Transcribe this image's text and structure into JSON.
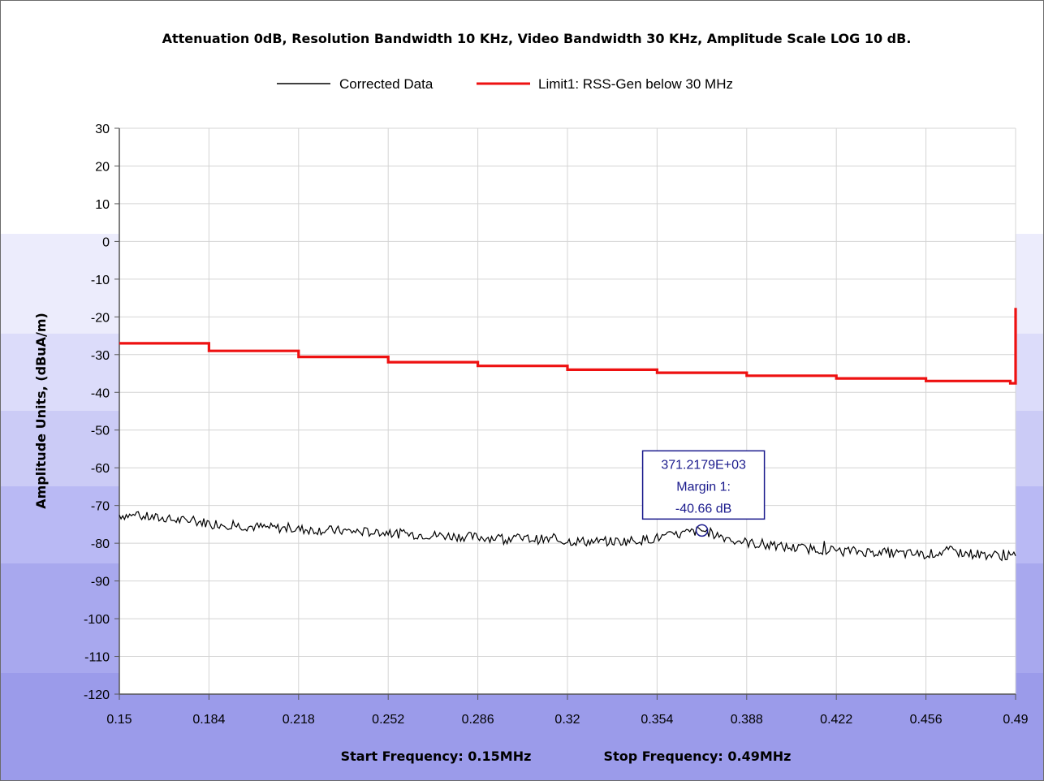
{
  "chart_data": {
    "type": "line",
    "title": "Attenuation 0dB, Resolution Bandwidth 10 KHz, Video Bandwidth 30 KHz, Amplitude Scale LOG 10 dB.",
    "ylabel": "Amplitude Units, (dBuA/m)",
    "footer": {
      "start": "Start Frequency: 0.15MHz",
      "stop": "Stop Frequency: 0.49MHz"
    },
    "xlim": [
      0.15,
      0.49
    ],
    "ylim": [
      -120,
      30
    ],
    "x_ticks": [
      "0.15",
      "0.184",
      "0.218",
      "0.252",
      "0.286",
      "0.32",
      "0.354",
      "0.388",
      "0.422",
      "0.456",
      "0.49"
    ],
    "y_ticks": [
      "30",
      "20",
      "10",
      "0",
      "-10",
      "-20",
      "-30",
      "-40",
      "-50",
      "-60",
      "-70",
      "-80",
      "-90",
      "-100",
      "-110",
      "-120"
    ],
    "grid": true,
    "legend_position": "top",
    "series": [
      {
        "name": "Corrected Data",
        "color": "#000000",
        "x": [
          0.15,
          0.16,
          0.17,
          0.18,
          0.184,
          0.19,
          0.2,
          0.21,
          0.218,
          0.23,
          0.24,
          0.252,
          0.26,
          0.27,
          0.28,
          0.286,
          0.3,
          0.31,
          0.32,
          0.33,
          0.34,
          0.35,
          0.354,
          0.36,
          0.365,
          0.371,
          0.375,
          0.38,
          0.388,
          0.395,
          0.405,
          0.415,
          0.422,
          0.435,
          0.445,
          0.456,
          0.46,
          0.465,
          0.47,
          0.48,
          0.49
        ],
        "y": [
          -72.5,
          -73.0,
          -73.8,
          -74.3,
          -74.6,
          -75.0,
          -75.6,
          -76.0,
          -76.3,
          -76.6,
          -76.9,
          -77.3,
          -77.6,
          -77.9,
          -78.2,
          -78.4,
          -78.7,
          -79.0,
          -79.4,
          -79.6,
          -79.5,
          -79.0,
          -78.6,
          -78.0,
          -77.3,
          -76.6,
          -77.4,
          -78.5,
          -79.8,
          -80.6,
          -81.2,
          -81.6,
          -81.9,
          -82.3,
          -82.7,
          -83.0,
          -82.6,
          -82.0,
          -82.6,
          -83.1,
          -83.5
        ]
      },
      {
        "name": "Limit1: RSS-Gen below 30 MHz",
        "color": "#ee1111",
        "x": [
          0.15,
          0.184,
          0.218,
          0.252,
          0.286,
          0.32,
          0.354,
          0.388,
          0.422,
          0.456,
          0.488,
          0.49,
          0.49
        ],
        "y": [
          -27.0,
          -29.0,
          -30.6,
          -32.0,
          -33.0,
          -34.0,
          -34.8,
          -35.6,
          -36.3,
          -37.0,
          -37.6,
          -37.6,
          -17.6
        ]
      }
    ],
    "annotation": {
      "lines": [
        "371.2179E+03",
        "Margin 1:",
        "-40.66 dB"
      ],
      "x": 0.371,
      "y": -76.6
    },
    "background_colors": [
      "#ffffff",
      "#ececfc",
      "#dcdcfa",
      "#cbcbf6",
      "#b9b9f4",
      "#a8a8ee",
      "#9b9bea"
    ]
  }
}
